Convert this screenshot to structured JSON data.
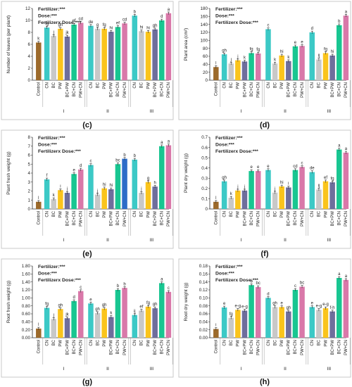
{
  "chart_data": [
    {
      "type": "bar",
      "panel": "(c)",
      "ylabel": "Number of leaves (per plant)",
      "ylim": [
        0,
        12
      ],
      "yticks": [
        0,
        2,
        4,
        6,
        8,
        10,
        12
      ],
      "annotations": [
        "Fertilizer:***",
        "Dose:***",
        "Fertilizerx Dose:***"
      ],
      "control": {
        "label": "Control",
        "value": 6.3,
        "err": 0.3,
        "letter": "k"
      },
      "categories": [
        "CN",
        "BC",
        "PW",
        "BC+PW",
        "BC+CN",
        "PW+CN"
      ],
      "groups": [
        {
          "label": "I",
          "values": [
            8.8,
            7.4,
            8.6,
            7.3,
            9.3,
            9.6
          ],
          "letters": [
            "fg",
            "j",
            "gh",
            "jk",
            "ef",
            "cd"
          ]
        },
        {
          "label": "II",
          "values": [
            9.1,
            8.6,
            8.6,
            8.1,
            8.9,
            9.5
          ],
          "letters": [
            "de",
            "g",
            "fg",
            "hi",
            "ef",
            "cd"
          ]
        },
        {
          "label": "III",
          "values": [
            10.8,
            8.2,
            8.1,
            8.5,
            10.0,
            11.2
          ],
          "letters": [
            "b",
            "hi",
            "hi",
            "gh",
            "d",
            "a"
          ]
        }
      ]
    },
    {
      "type": "bar",
      "panel": "(d)",
      "ylabel": "Plant area (cm²)",
      "ylim": [
        0,
        180
      ],
      "yticks": [
        0,
        20,
        40,
        60,
        80,
        100,
        120,
        140,
        160,
        180
      ],
      "annotations": [
        "Fertilizer:***",
        "Dose:***",
        "Fertilizerx Dose:***"
      ],
      "control": {
        "label": "Control",
        "value": 33,
        "err": 3,
        "letter": "l"
      },
      "categories": [
        "CN",
        "BC",
        "PW",
        "BC+PW",
        "BC+CN",
        "PW+CN"
      ],
      "groups": [
        {
          "label": "I",
          "values": [
            65,
            42,
            50,
            47,
            68,
            67
          ],
          "letters": [
            "gh",
            "j",
            "j",
            "k",
            "fg",
            "fg"
          ]
        },
        {
          "label": "II",
          "values": [
            128,
            42,
            62,
            48,
            85,
            86
          ],
          "letters": [
            "c",
            "k",
            "hi",
            "k",
            "e",
            "e"
          ]
        },
        {
          "label": "III",
          "values": [
            120,
            52,
            68,
            62,
            138,
            162
          ],
          "letters": [
            "d",
            "ij",
            "fg",
            "hi",
            "b",
            "a"
          ]
        }
      ]
    },
    {
      "type": "bar",
      "panel": "(e)",
      "ylabel": "Plant fresh weight (g)",
      "ylim": [
        0,
        8
      ],
      "yticks": [
        0,
        1,
        2,
        3,
        4,
        5,
        6,
        7,
        8
      ],
      "annotations": [
        "Fertilizer:***",
        "Dose:***",
        "Fertilizerx Dose:***"
      ],
      "control": {
        "label": "Control",
        "value": 0.8,
        "err": 0.05,
        "letter": "l"
      },
      "categories": [
        "CN",
        "BC",
        "PW",
        "BC+PW",
        "BC+CN",
        "PW+CN"
      ],
      "groups": [
        {
          "label": "I",
          "values": [
            3.3,
            1.1,
            2.1,
            1.8,
            3.9,
            4.4
          ],
          "letters": [
            "f",
            "k",
            "i",
            "j",
            "e",
            "d"
          ]
        },
        {
          "label": "II",
          "values": [
            4.9,
            1.6,
            2.3,
            2.2,
            5.0,
            5.6
          ],
          "letters": [
            "c",
            "j",
            "hi",
            "hi",
            "bc",
            "b"
          ]
        },
        {
          "label": "III",
          "values": [
            5.5,
            1.8,
            3.0,
            2.5,
            7.0,
            7.1
          ],
          "letters": [
            "b",
            "j",
            "g",
            "h",
            "a",
            "a"
          ]
        }
      ]
    },
    {
      "type": "bar",
      "panel": "(f)",
      "ylabel": "Plant dry weight (g)",
      "ylim": [
        0,
        0.7
      ],
      "yticks": [
        0,
        0.1,
        0.2,
        0.3,
        0.4,
        0.5,
        0.6,
        0.7
      ],
      "annotations": [
        "Fertilizer:***",
        "Dose:***",
        "Fertilizerx Dose:***"
      ],
      "control": {
        "label": "Control",
        "value": 0.07,
        "err": 0.02,
        "letter": "l"
      },
      "categories": [
        "CN",
        "BC",
        "PW",
        "BC+PW",
        "BC+CN",
        "PW+CN"
      ],
      "groups": [
        {
          "label": "I",
          "values": [
            0.27,
            0.11,
            0.18,
            0.18,
            0.37,
            0.37
          ],
          "letters": [
            "gh",
            "k",
            "j",
            "j",
            "e",
            "e"
          ]
        },
        {
          "label": "II",
          "values": [
            0.38,
            0.16,
            0.22,
            0.21,
            0.38,
            0.41
          ],
          "letters": [
            "e",
            "j",
            "hi",
            "i",
            "cd",
            "c"
          ]
        },
        {
          "label": "III",
          "values": [
            0.36,
            0.19,
            0.27,
            0.26,
            0.58,
            0.55
          ],
          "letters": [
            "de",
            "ij",
            "ef",
            "fg",
            "a",
            "a"
          ]
        }
      ]
    },
    {
      "type": "bar",
      "panel": "(g)",
      "ylabel": "Root fresh weight (g)",
      "ylim": [
        0,
        1.8
      ],
      "yticks": [
        "0.00",
        "0.20",
        "0.40",
        "0.60",
        "0.80",
        "1.00",
        "1.20",
        "1.40",
        "1.60",
        "1.80"
      ],
      "annotations": [
        "Fertilizer:***",
        "Dose:***",
        "Fertilizerx Dose:***"
      ],
      "control": {
        "label": "Control",
        "value": 0.23,
        "err": 0.02,
        "letter": "l"
      },
      "categories": [
        "CN",
        "BC",
        "PW",
        "BC+PW",
        "BC+CN",
        "PW+CN"
      ],
      "groups": [
        {
          "label": "I",
          "values": [
            0.75,
            0.47,
            0.72,
            0.49,
            0.92,
            1.17
          ],
          "letters": [
            "fg",
            "j",
            "gh",
            "jk",
            "d",
            "c"
          ]
        },
        {
          "label": "II",
          "values": [
            0.86,
            0.62,
            0.73,
            0.52,
            1.2,
            1.25
          ],
          "letters": [
            "e",
            "gh",
            "gh",
            "k",
            "b",
            "b"
          ]
        },
        {
          "label": "III",
          "values": [
            0.57,
            0.68,
            0.78,
            0.74,
            1.37,
            1.15
          ],
          "letters": [
            "ij",
            "ef",
            "fg",
            "gh",
            "a",
            "c"
          ]
        }
      ]
    },
    {
      "type": "bar",
      "panel": "(h)",
      "ylabel": "Root dry weight (g)",
      "ylim": [
        0,
        0.18
      ],
      "yticks": [
        "0.00",
        "0.02",
        "0.04",
        "0.06",
        "0.08",
        "0.10",
        "0.12",
        "0.14",
        "0.16",
        "0.18"
      ],
      "annotations": [
        "Fertilizer:***",
        "Dose:***",
        "Fertilizerx Dose:***"
      ],
      "control": {
        "label": "Control",
        "value": 0.022,
        "err": 0.003,
        "letter": "i"
      },
      "categories": [
        "CN",
        "BC",
        "PW",
        "BC+PW",
        "BC+CN",
        "PW+CN"
      ],
      "groups": [
        {
          "label": "I",
          "values": [
            0.076,
            0.05,
            0.07,
            0.068,
            0.132,
            0.127
          ],
          "letters": [
            "e",
            "fg",
            "e-g",
            "e-g",
            "b",
            "bc"
          ]
        },
        {
          "label": "II",
          "values": [
            0.1,
            0.077,
            0.077,
            0.066,
            0.12,
            0.128
          ],
          "letters": [
            "d",
            "gh",
            "e",
            "gh",
            "c",
            "bc"
          ]
        },
        {
          "label": "III",
          "values": [
            0.077,
            0.07,
            0.074,
            0.066,
            0.15,
            0.145
          ],
          "letters": [
            "e",
            "e-g",
            "e-g",
            "f-h",
            "a",
            "a"
          ]
        }
      ]
    }
  ],
  "colors": {
    "control": "#9c6a2b",
    "series": [
      "#3cc9c6",
      "#c8c8c8",
      "#fac41c",
      "#6e6e9c",
      "#18c691",
      "#d978a9"
    ],
    "special_bar_e_II_PW+CN": "#2d6cc8",
    "ylabel_unit_red": "#d02020"
  }
}
